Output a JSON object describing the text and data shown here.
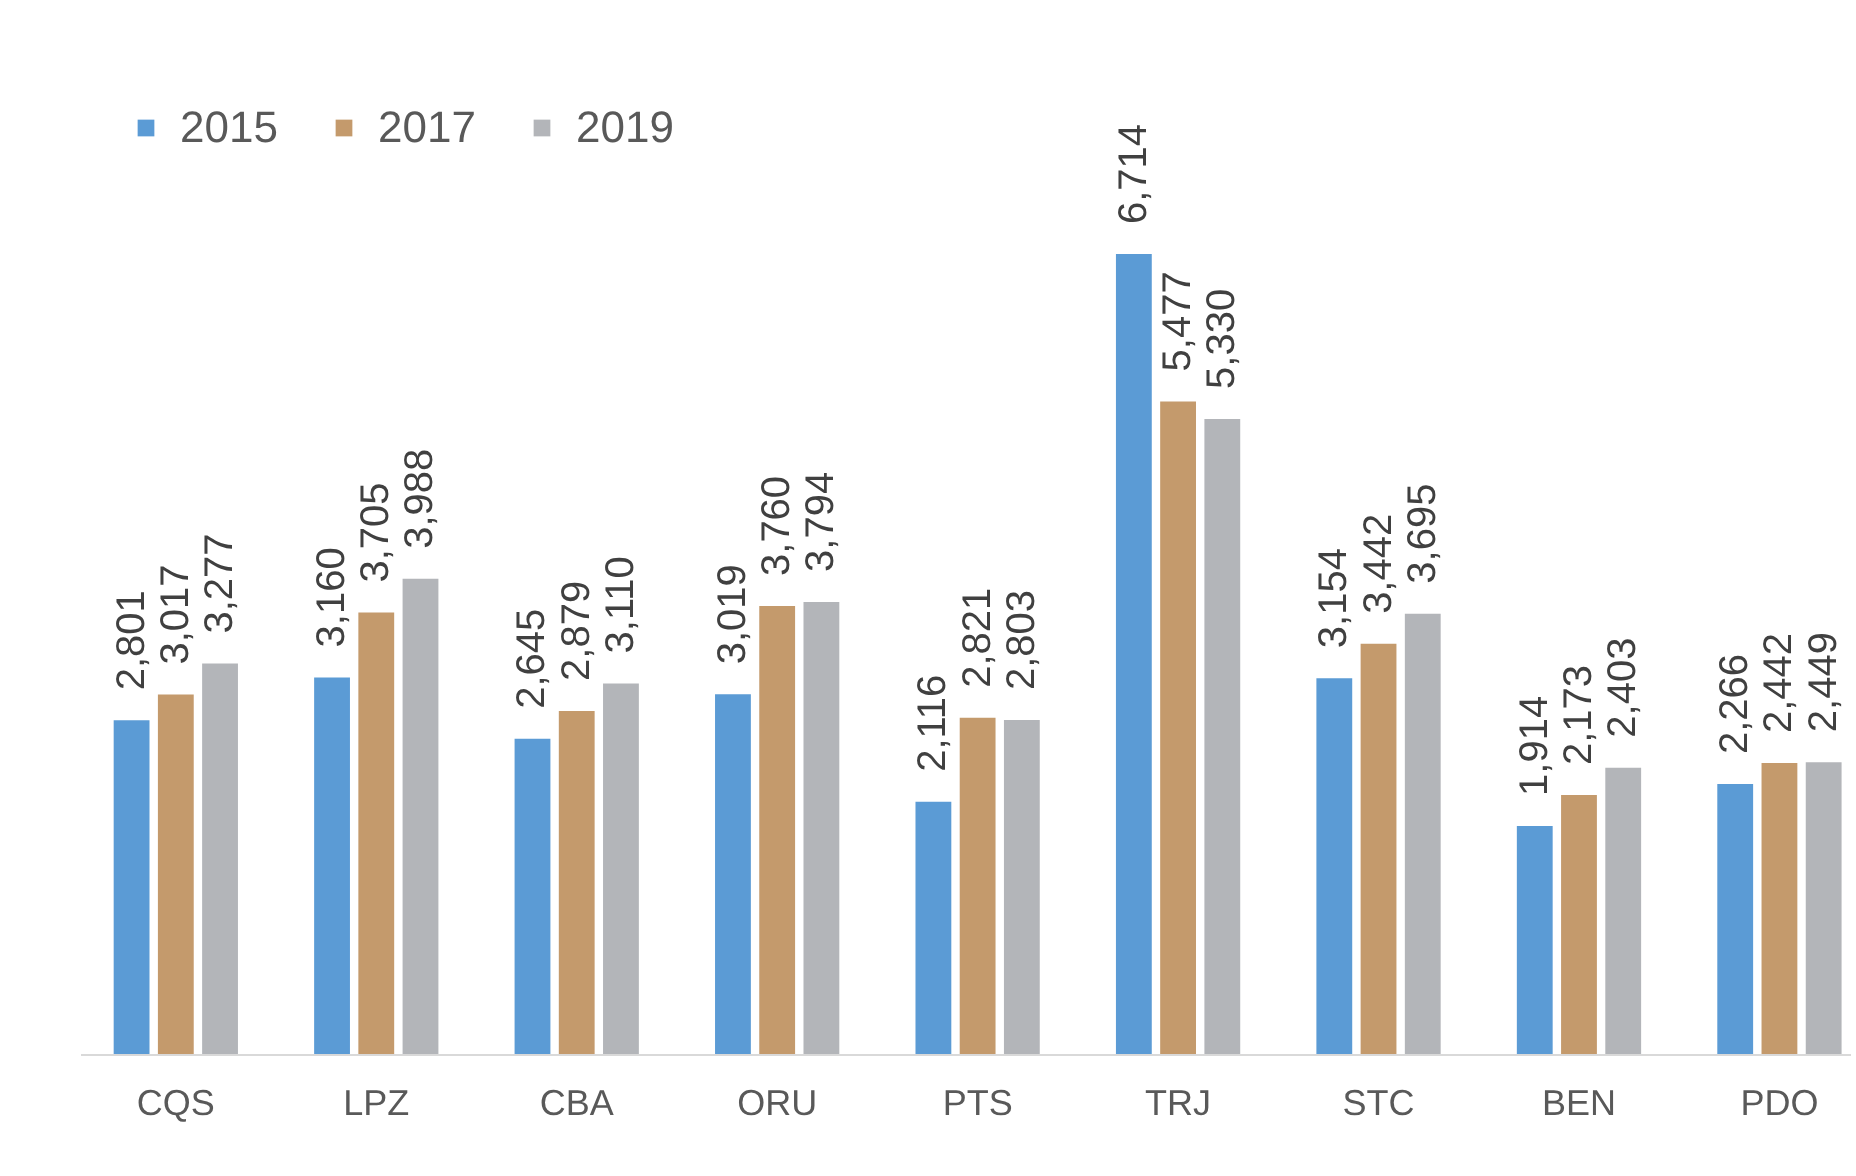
{
  "chart_data": {
    "type": "bar",
    "categories": [
      "CQS",
      "LPZ",
      "CBA",
      "ORU",
      "PTS",
      "TRJ",
      "STC",
      "BEN",
      "PDO"
    ],
    "series": [
      {
        "name": "2015",
        "color": "#5b9bd5",
        "values": [
          2801,
          3160,
          2645,
          3019,
          2116,
          6714,
          3154,
          1914,
          2266
        ],
        "value_labels": [
          "2,801",
          "3,160",
          "2,645",
          "3,019",
          "2,116",
          "6,714",
          "3,154",
          "1,914",
          "2,266"
        ]
      },
      {
        "name": "2017",
        "color": "#c49a6c",
        "values": [
          3017,
          3705,
          2879,
          3760,
          2821,
          5477,
          3442,
          2173,
          2442
        ],
        "value_labels": [
          "3,017",
          "3,705",
          "2,879",
          "3,760",
          "2,821",
          "5,477",
          "3,442",
          "2,173",
          "2,442"
        ]
      },
      {
        "name": "2019",
        "color": "#b3b5b9",
        "values": [
          3277,
          3988,
          3110,
          3794,
          2803,
          5330,
          3695,
          2403,
          2449
        ],
        "value_labels": [
          "3,277",
          "3,988",
          "3,110",
          "3,794",
          "2,803",
          "5,330",
          "3,695",
          "2,403",
          "2,449"
        ]
      }
    ],
    "legend": "top left"
  }
}
